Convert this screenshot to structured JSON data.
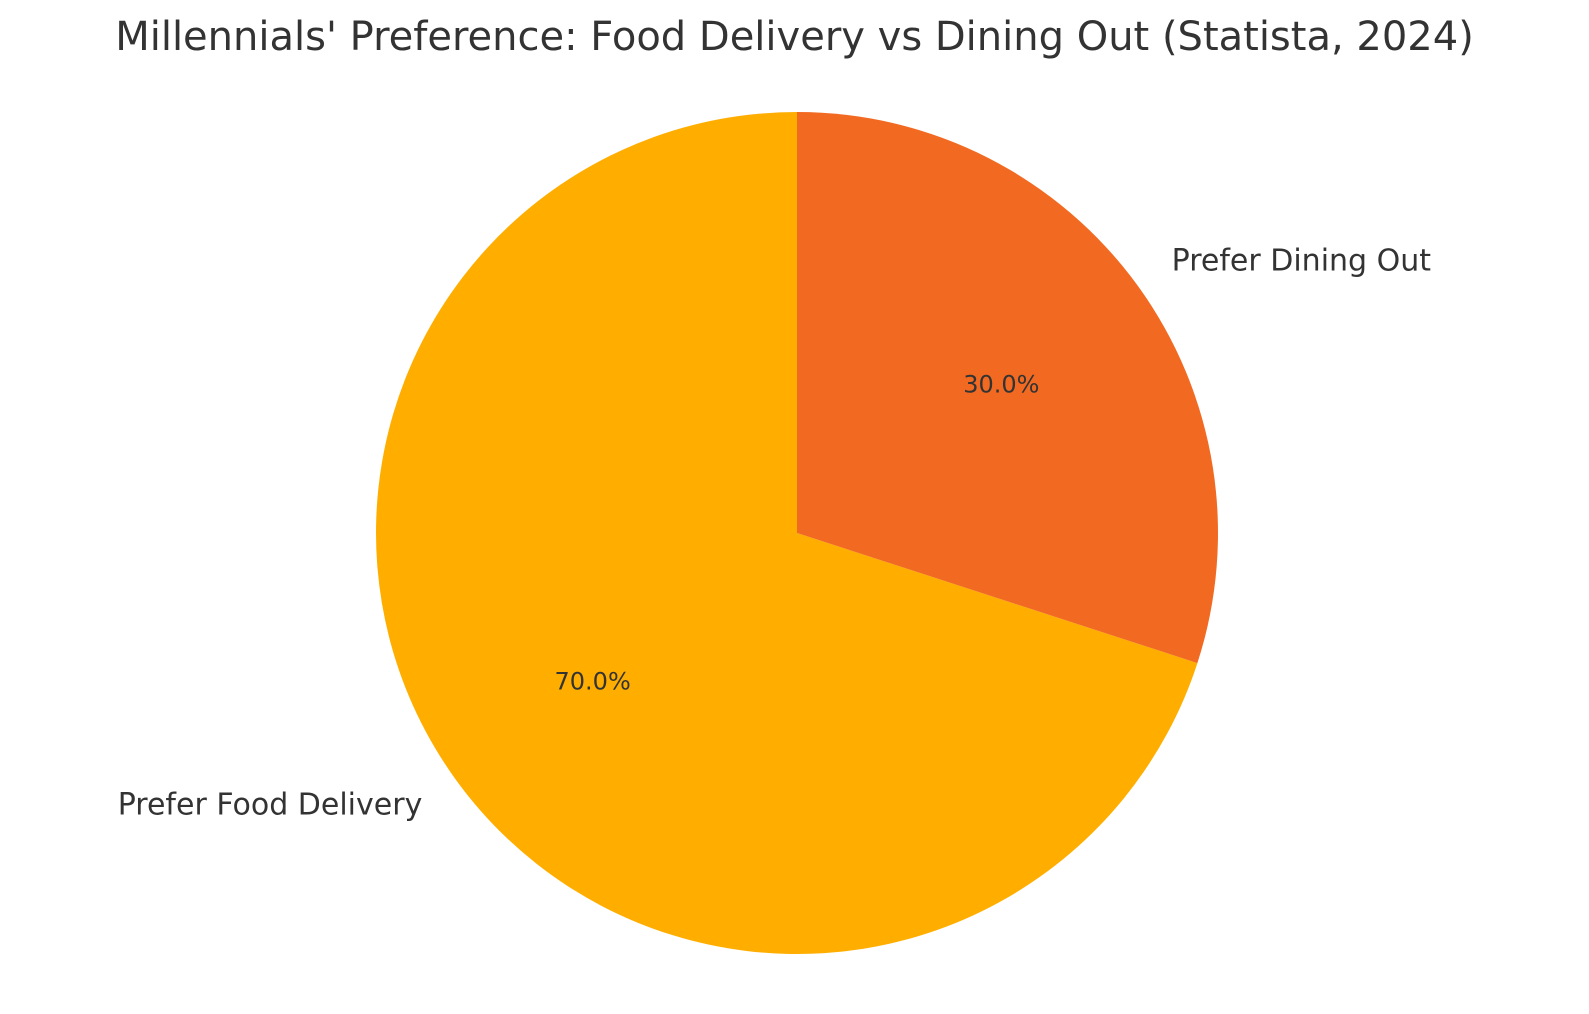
{
  "chart_data": {
    "type": "pie",
    "title": "Millennials' Preference: Food Delivery vs Dining Out (Statista, 2024)",
    "categories": [
      "Prefer Food Delivery",
      "Prefer Dining Out"
    ],
    "values": [
      70,
      30
    ],
    "percent_labels": [
      "70.0%",
      "30.0%"
    ],
    "colors": [
      "#FFAE00",
      "#F26A22"
    ],
    "start_angle_deg": 90,
    "direction": "counterclockwise"
  }
}
